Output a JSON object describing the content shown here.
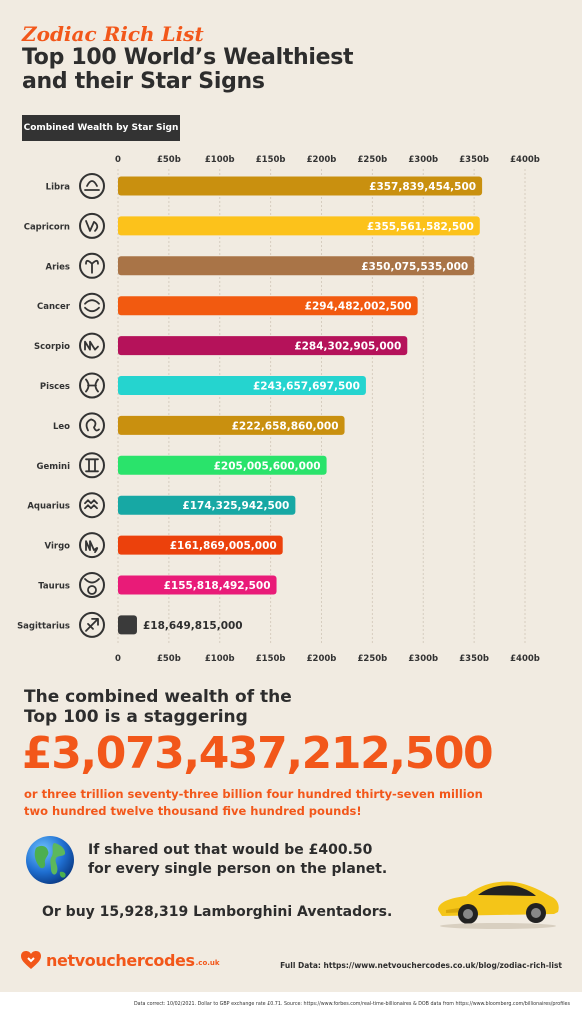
{
  "header": {
    "script_title": "Zodiac Rich List",
    "title_line1": "Top 100 World’s Wealthiest",
    "title_line2": "and their Star Signs",
    "chart_label": "Combined Wealth by Star Sign"
  },
  "chart_data": {
    "type": "bar",
    "orientation": "horizontal",
    "title": "Combined Wealth by Star Sign",
    "xlabel": "",
    "ylabel": "",
    "xlim": [
      0,
      400
    ],
    "x_ticks": [
      "0",
      "£50b",
      "£100b",
      "£150b",
      "£200b",
      "£250b",
      "£300b",
      "£350b",
      "£400b"
    ],
    "grid": true,
    "categories": [
      "Libra",
      "Capricorn",
      "Aries",
      "Cancer",
      "Scorpio",
      "Pisces",
      "Leo",
      "Gemini",
      "Aquarius",
      "Virgo",
      "Taurus",
      "Sagittarius"
    ],
    "values": [
      357.839,
      355.562,
      350.076,
      294.482,
      284.303,
      243.658,
      222.659,
      205.006,
      174.326,
      161.869,
      155.818,
      18.65
    ],
    "labels": [
      "£357,839,454,500",
      "£355,561,582,500",
      "£350,075,535,000",
      "£294,482,002,500",
      "£284,302,905,000",
      "£243,657,697,500",
      "£222,658,860,000",
      "£205,005,600,000",
      "£174,325,942,500",
      "£161,869,005,000",
      "£155,818,492,500",
      "£18,649,815,000"
    ],
    "colors": [
      "#c9900f",
      "#fcc21b",
      "#a97447",
      "#f25a10",
      "#b5125a",
      "#25d4cf",
      "#c9900f",
      "#2ae36b",
      "#17a8a4",
      "#ec410c",
      "#e91b78",
      "#3a3a3a"
    ]
  },
  "summary": {
    "headline_line1": "The combined wealth of the",
    "headline_line2": "Top 100 is a staggering",
    "big_number": "£3,073,437,212,500",
    "words_line1": "or three trillion seventy-three billion four hundred thirty-seven million",
    "words_line2": "two hundred twelve thousand five hundred pounds!",
    "shared_line1": "If shared out that would be £400.50",
    "shared_line2": "for every single person on the planet.",
    "lambo": "Or buy 15,928,319 Lamborghini Aventadors."
  },
  "footer": {
    "brand": "netvouchercodes",
    "brand_suffix": ".co.uk",
    "full_data": "Full Data: https://www.netvouchercodes.co.uk/blog/zodiac-rich-list",
    "footnote": "Data correct: 10/02/2021. Dollar to GBP exchange rate £0.71. Source: https://www.forbes.com/real-time-billionaires & DOB data from https://www.bloomberg.com/billionaires/profiles"
  },
  "icons": {
    "globe": "globe-icon",
    "car": "sports-car-icon",
    "heart": "heart-logo-icon"
  }
}
